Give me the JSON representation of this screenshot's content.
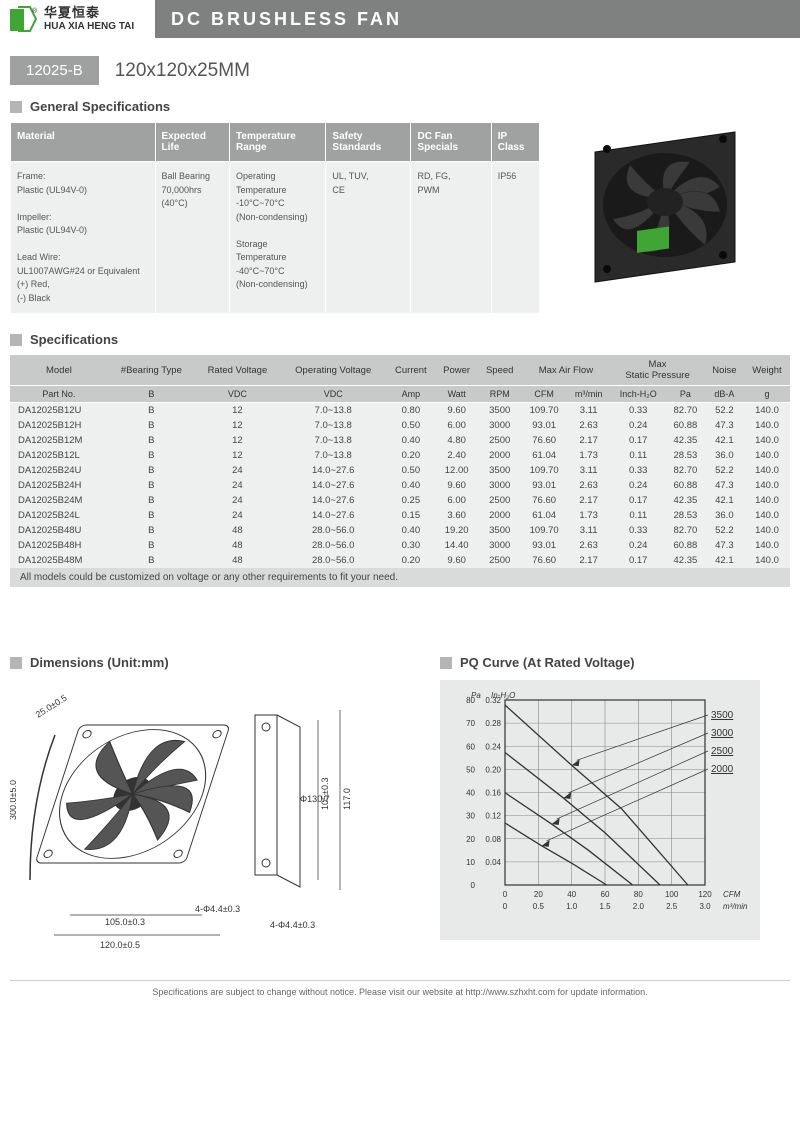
{
  "header": {
    "brand_cn": "华夏恒泰",
    "brand_en": "HUA XIA HENG TAI",
    "title": "DC BRUSHLESS FAN"
  },
  "model": {
    "badge": "12025-B",
    "dimensions": "120x120x25MM"
  },
  "sections": {
    "general": "General Specifications",
    "specs": "Specifications",
    "dims": "Dimensions (Unit:mm)",
    "pq": "PQ Curve (At Rated Voltage)"
  },
  "general_table": {
    "headers": [
      "Material",
      "Expected Life",
      "Temperature Range",
      "Safety Standards",
      "DC Fan Specials",
      "IP Class"
    ],
    "cells": [
      "Frame:\nPlastic (UL94V-0)\n\nImpeller:\nPlastic (UL94V-0)\n\nLead Wire:\nUL1007AWG#24 or Equivalent (+) Red,\n(-) Black",
      "Ball Bearing\n70,000hrs (40°C)",
      "Operating Temperature\n-10°C~70°C\n(Non-condensing)\n\nStorage Temperature\n-40°C~70°C\n(Non-condensing)",
      "UL, TUV,\nCE",
      "RD, FG,\nPWM",
      "IP56"
    ]
  },
  "spec_table": {
    "headers1": [
      "Model",
      "#Bearing Type",
      "Rated Voltage",
      "Operating Voltage",
      "Current",
      "Power",
      "Speed",
      "Max  Air  Flow",
      "",
      "Max\nStatic  Pressure",
      "",
      "Noise",
      "Weight"
    ],
    "headers2": [
      "Part No.",
      "B",
      "VDC",
      "VDC",
      "Amp",
      "Watt",
      "RPM",
      "CFM",
      "m³/min",
      "Inch-H₂O",
      "Pa",
      "dB-A",
      "g"
    ],
    "rows": [
      [
        "DA12025B12U",
        "B",
        "12",
        "7.0~13.8",
        "0.80",
        "9.60",
        "3500",
        "109.70",
        "3.11",
        "0.33",
        "82.70",
        "52.2",
        "140.0"
      ],
      [
        "DA12025B12H",
        "B",
        "12",
        "7.0~13.8",
        "0.50",
        "6.00",
        "3000",
        "93.01",
        "2.63",
        "0.24",
        "60.88",
        "47.3",
        "140.0"
      ],
      [
        "DA12025B12M",
        "B",
        "12",
        "7.0~13.8",
        "0.40",
        "4.80",
        "2500",
        "76.60",
        "2.17",
        "0.17",
        "42.35",
        "42.1",
        "140.0"
      ],
      [
        "DA12025B12L",
        "B",
        "12",
        "7.0~13.8",
        "0.20",
        "2.40",
        "2000",
        "61.04",
        "1.73",
        "0.11",
        "28.53",
        "36.0",
        "140.0"
      ],
      [
        "DA12025B24U",
        "B",
        "24",
        "14.0~27.6",
        "0.50",
        "12.00",
        "3500",
        "109.70",
        "3.11",
        "0.33",
        "82.70",
        "52.2",
        "140.0"
      ],
      [
        "DA12025B24H",
        "B",
        "24",
        "14.0~27.6",
        "0.40",
        "9.60",
        "3000",
        "93.01",
        "2.63",
        "0.24",
        "60.88",
        "47.3",
        "140.0"
      ],
      [
        "DA12025B24M",
        "B",
        "24",
        "14.0~27.6",
        "0.25",
        "6.00",
        "2500",
        "76.60",
        "2.17",
        "0.17",
        "42.35",
        "42.1",
        "140.0"
      ],
      [
        "DA12025B24L",
        "B",
        "24",
        "14.0~27.6",
        "0.15",
        "3.60",
        "2000",
        "61.04",
        "1.73",
        "0.11",
        "28.53",
        "36.0",
        "140.0"
      ],
      [
        "DA12025B48U",
        "B",
        "48",
        "28.0~56.0",
        "0.40",
        "19.20",
        "3500",
        "109.70",
        "3.11",
        "0.33",
        "82.70",
        "52.2",
        "140.0"
      ],
      [
        "DA12025B48H",
        "B",
        "48",
        "28.0~56.0",
        "0.30",
        "14.40",
        "3000",
        "93.01",
        "2.63",
        "0.24",
        "60.88",
        "47.3",
        "140.0"
      ],
      [
        "DA12025B48M",
        "B",
        "48",
        "28.0~56.0",
        "0.20",
        "9.60",
        "2500",
        "76.60",
        "2.17",
        "0.17",
        "42.35",
        "42.1",
        "140.0"
      ]
    ],
    "note": "All models could be customized on voltage or any other requirements to fit your need."
  },
  "dim_drawing": {
    "labels": [
      "25.0±0.5",
      "300.0±5.0",
      "120.0±0.5",
      "105.0±0.3",
      "4-Φ4.4±0.3",
      "4-Φ4.4±0.3",
      "Φ130.7",
      "105±0.3",
      "117.0"
    ]
  },
  "pq_chart": {
    "y_label_pa": "Pa",
    "y_label_in": "In-H₂O",
    "y_ticks_pa": [
      80,
      70,
      60,
      50,
      40,
      30,
      20,
      10,
      0
    ],
    "y_ticks_in": [
      "0.32",
      "0.28",
      "0.24",
      "0.20",
      "0.16",
      "0.12",
      "0.08",
      "0.04"
    ],
    "x_label_cfm": "CFM",
    "x_label_m3": "m³/min",
    "x_ticks_cfm": [
      0,
      20,
      40,
      60,
      80,
      100,
      120
    ],
    "x_ticks_m3": [
      "0",
      "0.5",
      "1.0",
      "1.5",
      "2.0",
      "2.5",
      "3.0"
    ],
    "series": [
      {
        "label": "3500",
        "color": "#333",
        "points": [
          [
            0,
            82.7
          ],
          [
            40,
            55
          ],
          [
            70,
            35
          ],
          [
            109.7,
            0
          ]
        ]
      },
      {
        "label": "3000",
        "color": "#333",
        "points": [
          [
            0,
            60.9
          ],
          [
            35,
            40
          ],
          [
            60,
            24
          ],
          [
            93,
            0
          ]
        ]
      },
      {
        "label": "2500",
        "color": "#333",
        "points": [
          [
            0,
            42.4
          ],
          [
            28,
            28
          ],
          [
            50,
            16
          ],
          [
            76.6,
            0
          ]
        ]
      },
      {
        "label": "2000",
        "color": "#333",
        "points": [
          [
            0,
            28.5
          ],
          [
            22,
            18
          ],
          [
            40,
            10
          ],
          [
            61,
            0
          ]
        ]
      }
    ],
    "bg": "#e8e9e9",
    "grid": "#888"
  },
  "footer": "Specifications are subject to change without notice. Please visit our website at http://www.szhxht.com for update information."
}
